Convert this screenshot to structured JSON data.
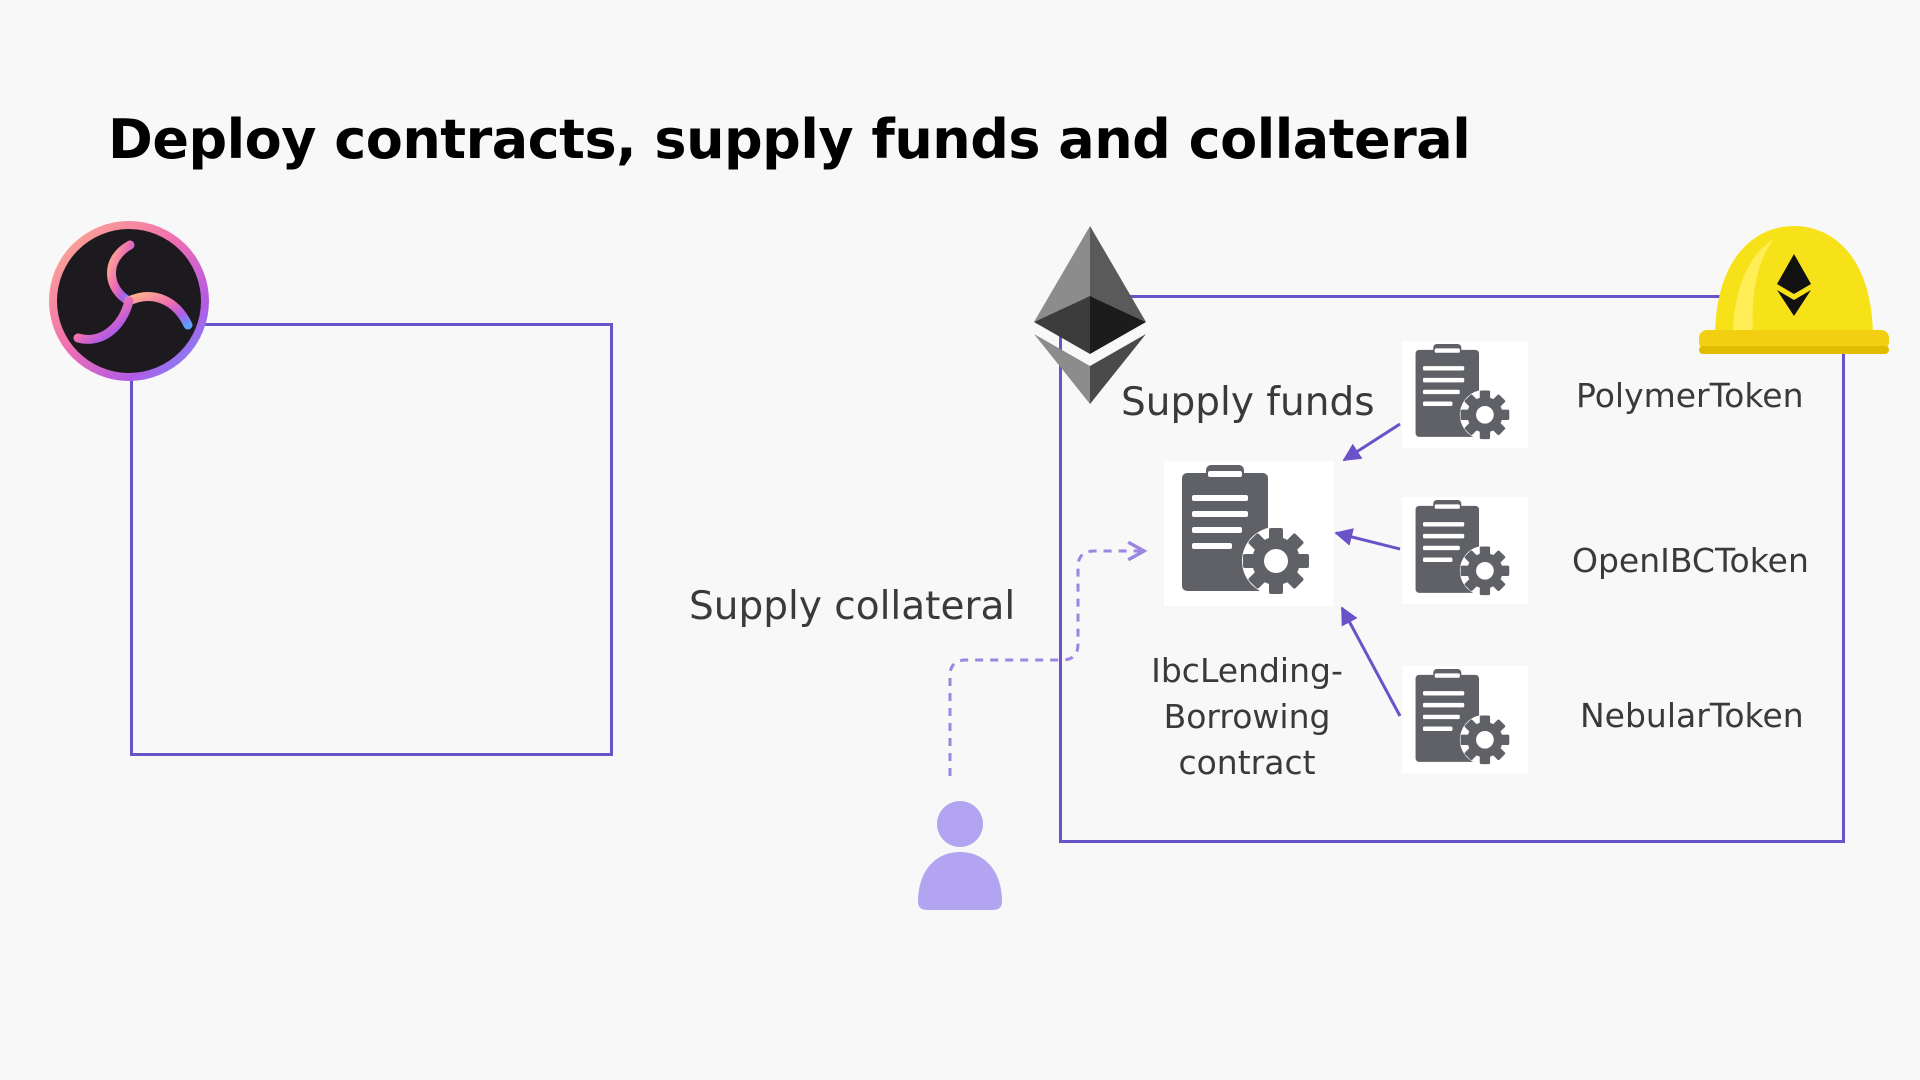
{
  "title": "Deploy contracts, supply funds and collateral",
  "labels": {
    "supply_funds": "Supply funds",
    "supply_collateral": "Supply collateral",
    "main_contract": [
      "IbcLending-",
      "Borrowing",
      "contract"
    ]
  },
  "tokens": [
    {
      "name": "PolymerToken"
    },
    {
      "name": "OpenIBCToken"
    },
    {
      "name": "NebularToken"
    }
  ],
  "icons": {
    "polymer_logo": "polymer-logo-icon",
    "ethereum_logo": "ethereum-logo-icon",
    "hardhat_logo": "hardhat-icon",
    "contract": "contract-icon",
    "user": "user-icon"
  },
  "colors": {
    "box_border": "#6a52c8",
    "arrow": "#6a52c8",
    "dashed_arrow": "#9b86e0",
    "user": "#b3a4f1",
    "contract_icon": "#5f6166",
    "hardhat": "#f7e21a"
  }
}
